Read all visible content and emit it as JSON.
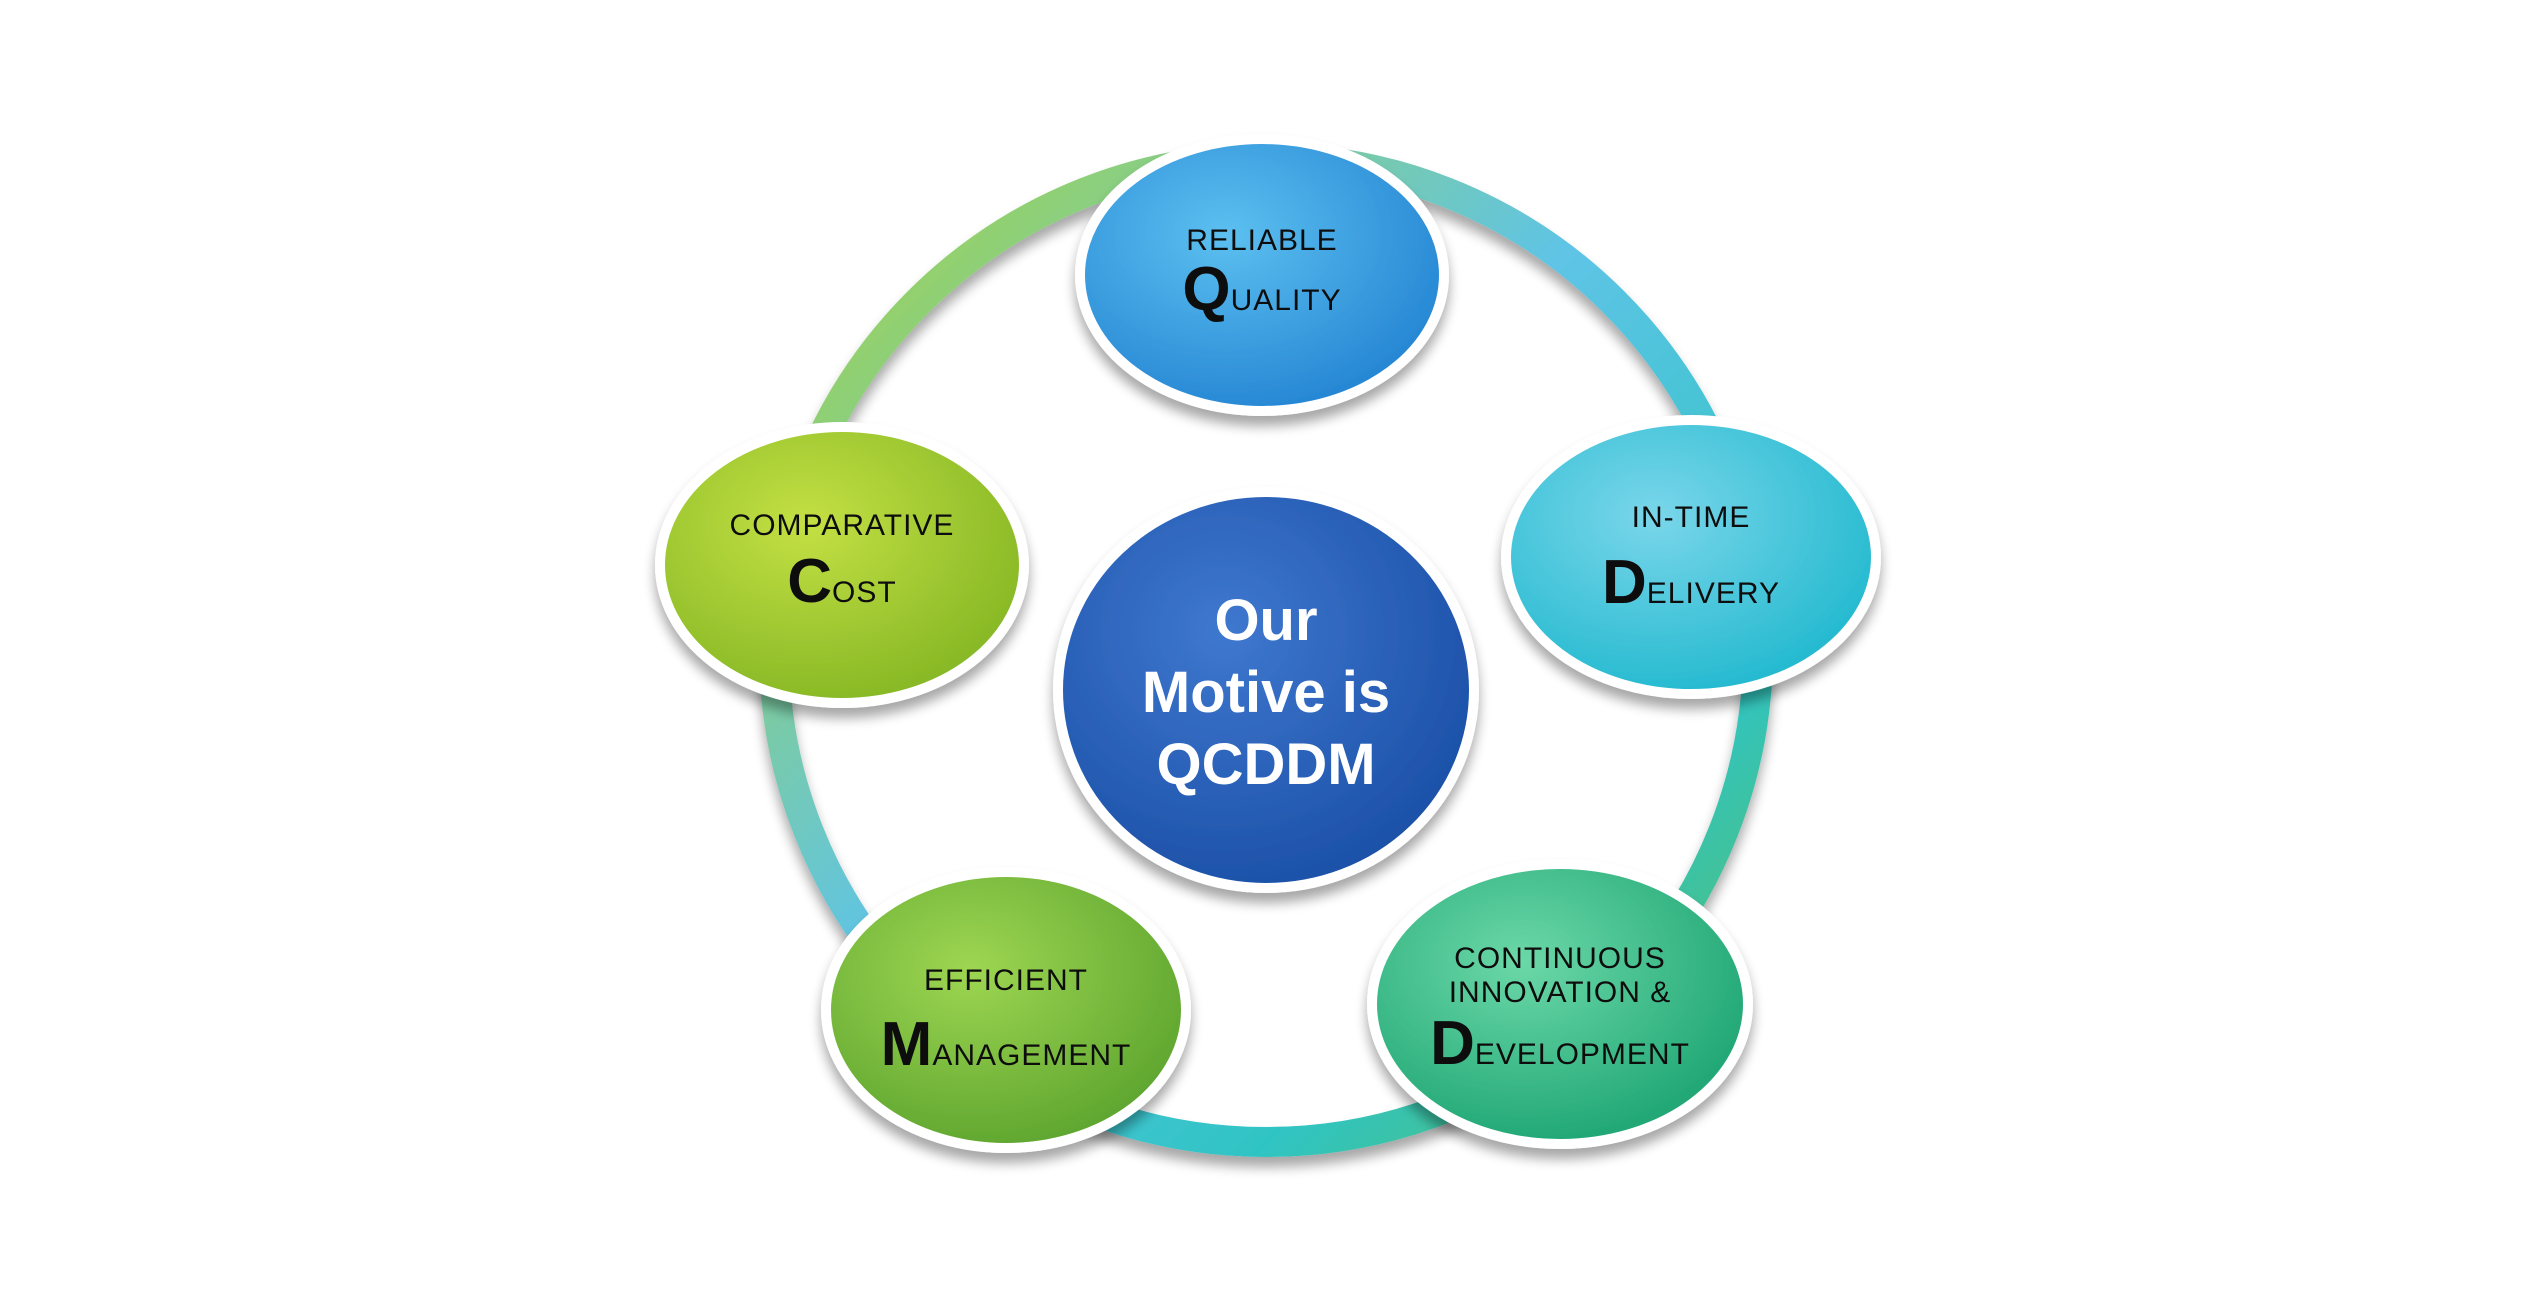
{
  "center": {
    "lines": [
      "Our",
      "Motive is",
      "QCDDM"
    ],
    "color": "#1e56b0"
  },
  "nodes": [
    {
      "id": "quality",
      "top_lines": [
        "RELIABLE"
      ],
      "initial": "Q",
      "rest": "UALITY",
      "color_light": "#4fb4ec",
      "color_dark": "#1f7fd0",
      "icon": "ellipse-node"
    },
    {
      "id": "delivery",
      "top_lines": [
        "IN-TIME"
      ],
      "initial": "D",
      "rest": "ELIVERY",
      "color_light": "#6fd0e8",
      "color_dark": "#1eb9cf",
      "icon": "ellipse-node"
    },
    {
      "id": "development",
      "top_lines": [
        "CONTINUOUS",
        "INNOVATION &"
      ],
      "initial": "D",
      "rest": "EVELOPMENT",
      "color_light": "#5fd2a0",
      "color_dark": "#1aa874",
      "icon": "ellipse-node"
    },
    {
      "id": "management",
      "top_lines": [
        "EFFICIENT"
      ],
      "initial": "M",
      "rest": "ANAGEMENT",
      "color_light": "#93cf4a",
      "color_dark": "#5ea52d",
      "icon": "ellipse-node"
    },
    {
      "id": "cost",
      "top_lines": [
        "COMPARATIVE"
      ],
      "initial": "C",
      "rest": "OST",
      "color_light": "#bcdc3c",
      "color_dark": "#86b823",
      "icon": "ellipse-node"
    }
  ]
}
